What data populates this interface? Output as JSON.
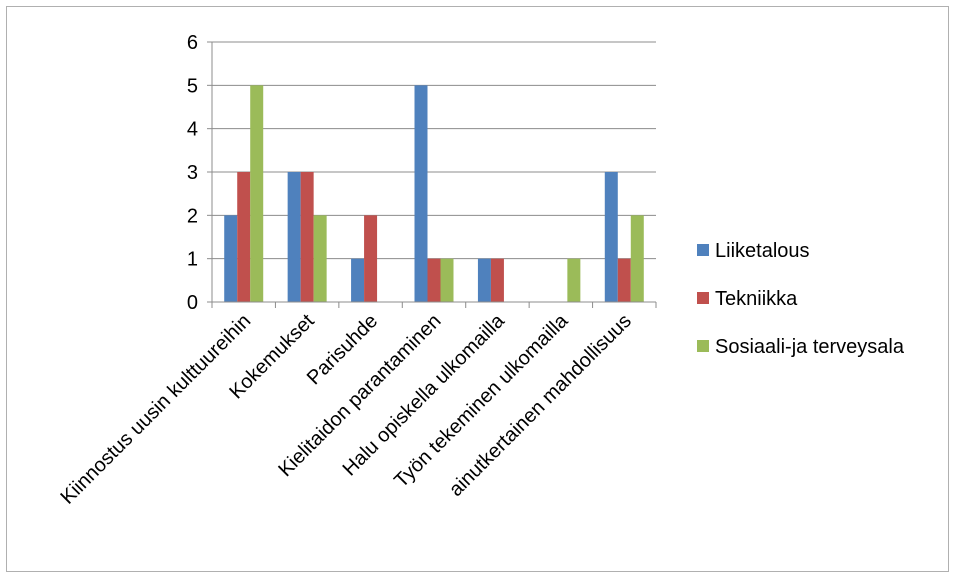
{
  "chart_data": {
    "type": "bar",
    "categories": [
      "Kiinnostus uusin kulttuureihin",
      "Kokemukset",
      "Parisuhde",
      "Kielitaidon parantaminen",
      "Halu opiskella ulkomailla",
      "Työn tekeminen ulkomailla",
      "ainutkertainen mahdollisuus"
    ],
    "series": [
      {
        "name": "Liiketalous",
        "color": "#4f81bd",
        "values": [
          2,
          3,
          1,
          5,
          1,
          0,
          3
        ]
      },
      {
        "name": "Tekniikka",
        "color": "#c0504d",
        "values": [
          3,
          3,
          2,
          1,
          1,
          0,
          1
        ]
      },
      {
        "name": "Sosiaali-ja terveysala",
        "color": "#9bbb59",
        "values": [
          5,
          2,
          0,
          1,
          0,
          1,
          2
        ]
      }
    ],
    "title": "",
    "xlabel": "",
    "ylabel": "",
    "ylim": [
      0,
      6
    ],
    "yticks": [
      "0",
      "1",
      "2",
      "3",
      "4",
      "5",
      "6"
    ],
    "grid": true,
    "legend_position": "right"
  }
}
